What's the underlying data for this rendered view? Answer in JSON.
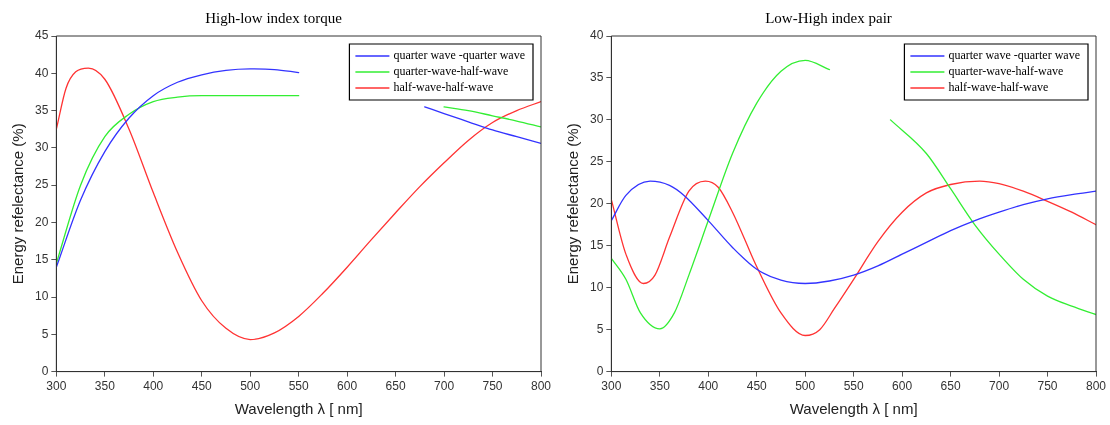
{
  "chart_data": [
    {
      "type": "line",
      "title": "High-low index torque",
      "xlabel": "Wavelength λ [ nm]",
      "ylabel": "Energy refelectance (%)",
      "xlim": [
        300,
        800
      ],
      "ylim": [
        0,
        45
      ],
      "xticks": [
        300,
        350,
        400,
        450,
        500,
        550,
        600,
        650,
        700,
        750,
        800
      ],
      "yticks": [
        0,
        5,
        10,
        15,
        20,
        25,
        30,
        35,
        40,
        45
      ],
      "grid": false,
      "legend": "top right",
      "marker": "none",
      "line_style": "solid",
      "series": [
        {
          "name": "quarter wave -quarter wave",
          "color": "#3333ff",
          "x": [
            300,
            325,
            350,
            375,
            400,
            425,
            450,
            475,
            500,
            525,
            550,
            600,
            650,
            680,
            700,
            725,
            750,
            775,
            800
          ],
          "values": [
            14,
            23,
            29.5,
            34,
            37,
            38.8,
            39.8,
            40.4,
            40.6,
            40.5,
            40.1,
            null,
            null,
            35.5,
            34.6,
            33.5,
            32.4,
            31.5,
            30.6
          ]
        },
        {
          "name": "quarter-wave-half-wave",
          "color": "#33ee33",
          "x": [
            300,
            325,
            350,
            375,
            400,
            425,
            450,
            500,
            550,
            600,
            650,
            700,
            725,
            750,
            775,
            800
          ],
          "values": [
            14.5,
            25,
            31.5,
            34.5,
            36.2,
            36.8,
            37,
            37,
            37,
            null,
            null,
            35.5,
            35,
            34.3,
            33.6,
            32.8
          ]
        },
        {
          "name": "half-wave-half-wave",
          "color": "#ff3333",
          "x": [
            300,
            310,
            320,
            333,
            350,
            375,
            400,
            425,
            450,
            475,
            500,
            525,
            550,
            575,
            600,
            625,
            650,
            675,
            700,
            725,
            750,
            775,
            800
          ],
          "values": [
            32.5,
            38,
            40.2,
            40.7,
            39.2,
            32.5,
            24,
            16,
            9.5,
            5.8,
            4.3,
            5.2,
            7.4,
            10.5,
            14,
            17.7,
            21.3,
            24.8,
            28,
            31,
            33.4,
            35,
            36.2
          ]
        }
      ]
    },
    {
      "type": "line",
      "title": "Low-High index pair",
      "xlabel": "Wavelength λ [ nm]",
      "ylabel": "Energy refelectance (%)",
      "xlim": [
        300,
        800
      ],
      "ylim": [
        0,
        40
      ],
      "xticks": [
        300,
        350,
        400,
        450,
        500,
        550,
        600,
        650,
        700,
        750,
        800
      ],
      "yticks": [
        0,
        5,
        10,
        15,
        20,
        25,
        30,
        35,
        40
      ],
      "grid": false,
      "legend": "top right",
      "marker": "none",
      "line_style": "solid",
      "series": [
        {
          "name": "quarter wave -quarter wave",
          "color": "#3333ff",
          "x": [
            300,
            315,
            340,
            360,
            375,
            400,
            425,
            450,
            475,
            500,
            525,
            550,
            575,
            600,
            625,
            650,
            675,
            700,
            725,
            750,
            775,
            800
          ],
          "values": [
            18,
            21,
            22.7,
            22.2,
            21,
            18,
            14.8,
            12.2,
            10.9,
            10.5,
            10.8,
            11.5,
            12.6,
            14,
            15.4,
            16.8,
            18,
            19,
            19.9,
            20.6,
            21.1,
            21.5
          ]
        },
        {
          "name": "quarter-wave-half-wave",
          "color": "#33ee33",
          "x": [
            300,
            315,
            330,
            350,
            365,
            380,
            400,
            425,
            450,
            475,
            500,
            525,
            550,
            575,
            588,
            625,
            650,
            675,
            700,
            725,
            750,
            775,
            800
          ],
          "values": [
            13.5,
            11,
            7,
            5.1,
            7,
            11.5,
            18,
            26,
            32,
            35.8,
            37.1,
            36,
            null,
            null,
            30,
            26,
            21.8,
            17.5,
            14,
            11,
            9,
            7.8,
            6.8
          ]
        },
        {
          "name": "half-wave-half-wave",
          "color": "#ff3333",
          "x": [
            300,
            315,
            333,
            345,
            360,
            380,
            397,
            410,
            425,
            450,
            475,
            500,
            515,
            530,
            550,
            575,
            600,
            625,
            650,
            680,
            700,
            725,
            750,
            775,
            800
          ],
          "values": [
            20.5,
            14,
            10.5,
            11.5,
            16,
            21.5,
            22.7,
            22,
            19,
            12.5,
            7,
            4.3,
            5,
            7.5,
            11,
            15.5,
            19,
            21.3,
            22.3,
            22.7,
            22.4,
            21.5,
            20.3,
            19,
            17.5
          ]
        }
      ]
    }
  ]
}
